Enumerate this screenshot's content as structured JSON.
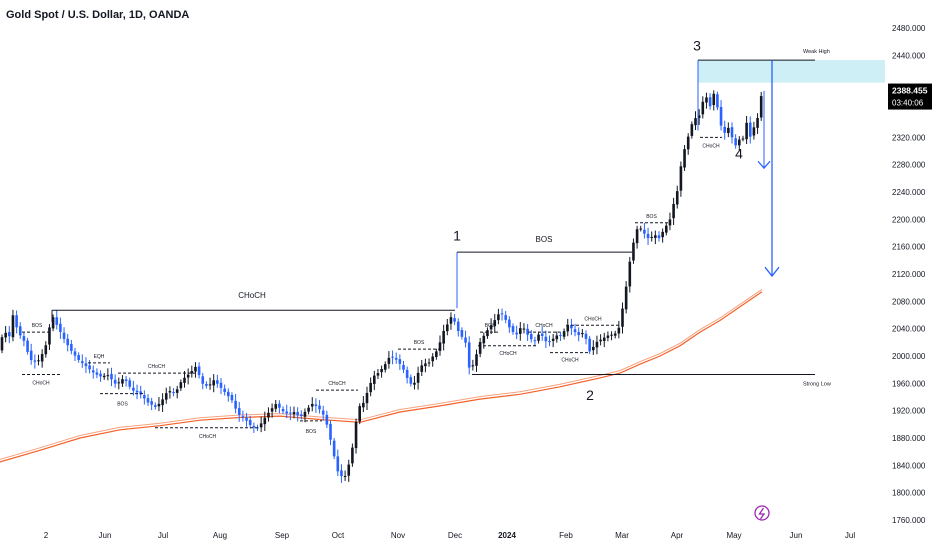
{
  "chart_data": {
    "type": "candlestick",
    "title": "Gold Spot / U.S. Dollar, 1D, OANDA",
    "ylim": [
      1760,
      2480
    ],
    "y_ticks": [
      2480,
      2440,
      2400,
      2360,
      2320,
      2280,
      2240,
      2200,
      2160,
      2120,
      2080,
      2040,
      2000,
      1960,
      1920,
      1880,
      1840,
      1800,
      1760
    ],
    "y_tick_labels": [
      "2480.000",
      "2440.000",
      "2400.000",
      "2360.000",
      "2320.000",
      "2280.000",
      "2240.000",
      "2200.000",
      "2160.000",
      "2120.000",
      "2080.000",
      "2040.000",
      "2000.000",
      "1960.000",
      "1920.000",
      "1880.000",
      "1840.000",
      "1800.000",
      "1760.000"
    ],
    "x_ticks": [
      "2",
      "Jun",
      "Jul",
      "Aug",
      "Sep",
      "Oct",
      "Nov",
      "Dec",
      "2024",
      "Feb",
      "Mar",
      "Apr",
      "May",
      "Jun",
      "Jul"
    ],
    "last_price": "2388.455",
    "countdown": "03:40:06",
    "price_path": [
      [
        0,
        2010
      ],
      [
        4,
        2045
      ],
      [
        8,
        2018
      ],
      [
        13,
        2060
      ],
      [
        18,
        2035
      ],
      [
        24,
        2022
      ],
      [
        30,
        1995
      ],
      [
        37,
        1990
      ],
      [
        45,
        2010
      ],
      [
        52,
        2060
      ],
      [
        58,
        2042
      ],
      [
        64,
        2025
      ],
      [
        70,
        2010
      ],
      [
        78,
        1995
      ],
      [
        86,
        1985
      ],
      [
        94,
        1975
      ],
      [
        100,
        1970
      ],
      [
        108,
        1972
      ],
      [
        116,
        1958
      ],
      [
        124,
        1968
      ],
      [
        132,
        1950
      ],
      [
        140,
        1945
      ],
      [
        148,
        1932
      ],
      [
        156,
        1925
      ],
      [
        162,
        1935
      ],
      [
        168,
        1950
      ],
      [
        175,
        1945
      ],
      [
        182,
        1965
      ],
      [
        190,
        1975
      ],
      [
        196,
        1985
      ],
      [
        202,
        1960
      ],
      [
        208,
        1955
      ],
      [
        214,
        1965
      ],
      [
        220,
        1955
      ],
      [
        226,
        1945
      ],
      [
        232,
        1935
      ],
      [
        238,
        1915
      ],
      [
        245,
        1908
      ],
      [
        252,
        1896
      ],
      [
        258,
        1894
      ],
      [
        264,
        1908
      ],
      [
        270,
        1920
      ],
      [
        276,
        1930
      ],
      [
        282,
        1920
      ],
      [
        288,
        1915
      ],
      [
        294,
        1918
      ],
      [
        300,
        1910
      ],
      [
        306,
        1920
      ],
      [
        312,
        1930
      ],
      [
        318,
        1925
      ],
      [
        323,
        1915
      ],
      [
        328,
        1895
      ],
      [
        333,
        1860
      ],
      [
        338,
        1830
      ],
      [
        344,
        1820
      ],
      [
        348,
        1836
      ],
      [
        353,
        1870
      ],
      [
        358,
        1925
      ],
      [
        363,
        1930
      ],
      [
        368,
        1950
      ],
      [
        373,
        1970
      ],
      [
        378,
        1975
      ],
      [
        384,
        1985
      ],
      [
        390,
        2000
      ],
      [
        396,
        1995
      ],
      [
        402,
        1985
      ],
      [
        408,
        1965
      ],
      [
        413,
        1955
      ],
      [
        418,
        1975
      ],
      [
        423,
        1990
      ],
      [
        428,
        1988
      ],
      [
        433,
        2000
      ],
      [
        438,
        2010
      ],
      [
        443,
        2035
      ],
      [
        448,
        2048
      ],
      [
        452,
        2060
      ],
      [
        456,
        2045
      ],
      [
        460,
        2030
      ],
      [
        465,
        2025
      ],
      [
        470,
        1975
      ],
      [
        475,
        1995
      ],
      [
        480,
        2020
      ],
      [
        486,
        2035
      ],
      [
        491,
        2045
      ],
      [
        496,
        2055
      ],
      [
        500,
        2065
      ],
      [
        505,
        2055
      ],
      [
        510,
        2040
      ],
      [
        516,
        2030
      ],
      [
        522,
        2045
      ],
      [
        528,
        2030
      ],
      [
        534,
        2020
      ],
      [
        540,
        2035
      ],
      [
        545,
        2022
      ],
      [
        550,
        2020
      ],
      [
        556,
        2030
      ],
      [
        562,
        2030
      ],
      [
        567,
        2045
      ],
      [
        572,
        2040
      ],
      [
        578,
        2030
      ],
      [
        584,
        2035
      ],
      [
        590,
        2005
      ],
      [
        596,
        2020
      ],
      [
        602,
        2025
      ],
      [
        608,
        2030
      ],
      [
        614,
        2032
      ],
      [
        618,
        2035
      ],
      [
        622,
        2065
      ],
      [
        626,
        2100
      ],
      [
        630,
        2140
      ],
      [
        634,
        2170
      ],
      [
        638,
        2190
      ],
      [
        642,
        2185
      ],
      [
        646,
        2175
      ],
      [
        650,
        2170
      ],
      [
        654,
        2180
      ],
      [
        658,
        2170
      ],
      [
        662,
        2180
      ],
      [
        666,
        2190
      ],
      [
        670,
        2200
      ],
      [
        674,
        2225
      ],
      [
        678,
        2245
      ],
      [
        682,
        2290
      ],
      [
        686,
        2310
      ],
      [
        690,
        2330
      ],
      [
        694,
        2350
      ],
      [
        698,
        2345
      ],
      [
        702,
        2370
      ],
      [
        706,
        2380
      ],
      [
        710,
        2365
      ],
      [
        714,
        2385
      ],
      [
        718,
        2360
      ],
      [
        722,
        2330
      ],
      [
        726,
        2325
      ],
      [
        730,
        2340
      ],
      [
        734,
        2300
      ],
      [
        738,
        2320
      ],
      [
        742,
        2310
      ],
      [
        746,
        2345
      ],
      [
        750,
        2320
      ],
      [
        754,
        2335
      ],
      [
        758,
        2350
      ],
      [
        762,
        2388
      ]
    ],
    "ma_path": [
      [
        0,
        1845
      ],
      [
        40,
        1862
      ],
      [
        80,
        1880
      ],
      [
        120,
        1892
      ],
      [
        160,
        1898
      ],
      [
        200,
        1906
      ],
      [
        240,
        1910
      ],
      [
        280,
        1912
      ],
      [
        320,
        1907
      ],
      [
        360,
        1903
      ],
      [
        400,
        1918
      ],
      [
        440,
        1927
      ],
      [
        480,
        1937
      ],
      [
        520,
        1944
      ],
      [
        560,
        1955
      ],
      [
        600,
        1968
      ],
      [
        620,
        1975
      ],
      [
        640,
        1988
      ],
      [
        660,
        2000
      ],
      [
        680,
        2015
      ],
      [
        700,
        2035
      ],
      [
        720,
        2052
      ],
      [
        740,
        2072
      ],
      [
        762,
        2094
      ]
    ],
    "zone": {
      "y_low": 2400,
      "y_high": 2433
    },
    "levels": [
      {
        "label": "Weak High",
        "value": 2433,
        "x_from": 698
      },
      {
        "label": "Strong Low",
        "value": 1973,
        "x_from": 472
      }
    ],
    "wave_labels": [
      "1",
      "2",
      "3",
      "4"
    ],
    "annotations": {
      "choch_main": "CHoCH",
      "bos_main": "BOS",
      "bos": "BOS",
      "choch": "CHoCH",
      "eqh": "EQH"
    }
  },
  "icons": {
    "bolt": "lightning-bolt-icon"
  },
  "colors": {
    "bull": "#131722",
    "bear": "#2962ff",
    "ma": "#f2622a",
    "zone": "#cdeff5",
    "arrow": "#2962ff",
    "axis_text": "#131722",
    "price_badge": "#000000",
    "bolt": "#9c27b0"
  }
}
